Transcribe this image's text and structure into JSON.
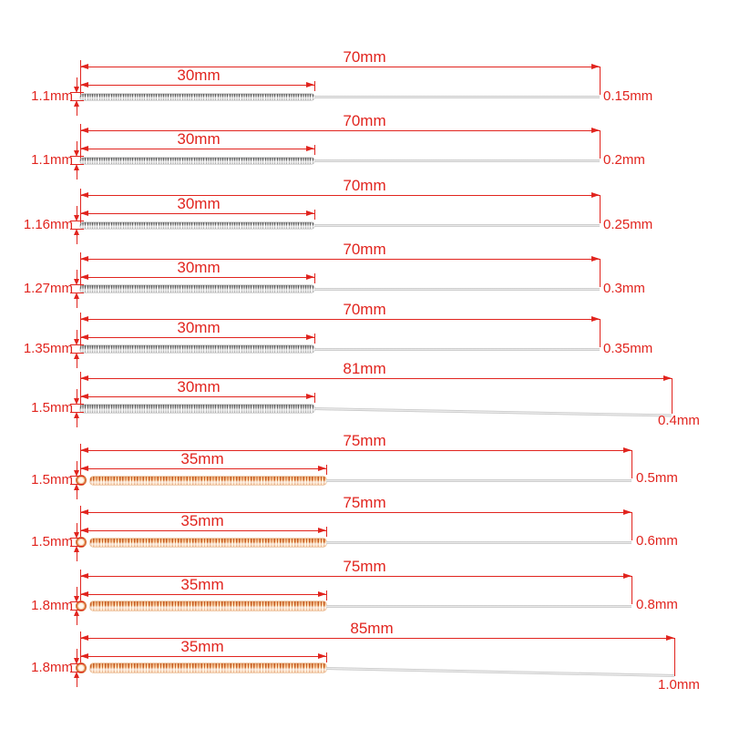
{
  "diagram": {
    "kind": "needle-dimension-diagram",
    "units": "mm",
    "row_count": 10
  },
  "diagram_rows": [
    {
      "thickness": "1.1mm",
      "coil_length": "30mm",
      "total_length": "70mm",
      "tip_size": "0.15mm",
      "coil_material": "steel"
    },
    {
      "thickness": "1.1mm",
      "coil_length": "30mm",
      "total_length": "70mm",
      "tip_size": "0.2mm",
      "coil_material": "steel"
    },
    {
      "thickness": "1.16mm",
      "coil_length": "30mm",
      "total_length": "70mm",
      "tip_size": "0.25mm",
      "coil_material": "steel"
    },
    {
      "thickness": "1.27mm",
      "coil_length": "30mm",
      "total_length": "70mm",
      "tip_size": "0.3mm",
      "coil_material": "steel"
    },
    {
      "thickness": "1.35mm",
      "coil_length": "30mm",
      "total_length": "70mm",
      "tip_size": "0.35mm",
      "coil_material": "steel"
    },
    {
      "thickness": "1.5mm",
      "coil_length": "30mm",
      "total_length": "81mm",
      "tip_size": "0.4mm",
      "coil_material": "steel"
    },
    {
      "thickness": "1.5mm",
      "coil_length": "35mm",
      "total_length": "75mm",
      "tip_size": "0.5mm",
      "coil_material": "copper"
    },
    {
      "thickness": "1.5mm",
      "coil_length": "35mm",
      "total_length": "75mm",
      "tip_size": "0.6mm",
      "coil_material": "copper"
    },
    {
      "thickness": "1.8mm",
      "coil_length": "35mm",
      "total_length": "75mm",
      "tip_size": "0.8mm",
      "coil_material": "copper"
    },
    {
      "thickness": "1.8mm",
      "coil_length": "35mm",
      "total_length": "85mm",
      "tip_size": "1.0mm",
      "coil_material": "copper"
    }
  ],
  "colors": {
    "dimension": "#e1241e",
    "steel_coil": "#8f8f8f",
    "copper_coil": "#d8713a",
    "wire": "#d6d6d6",
    "background": "#ffffff"
  }
}
